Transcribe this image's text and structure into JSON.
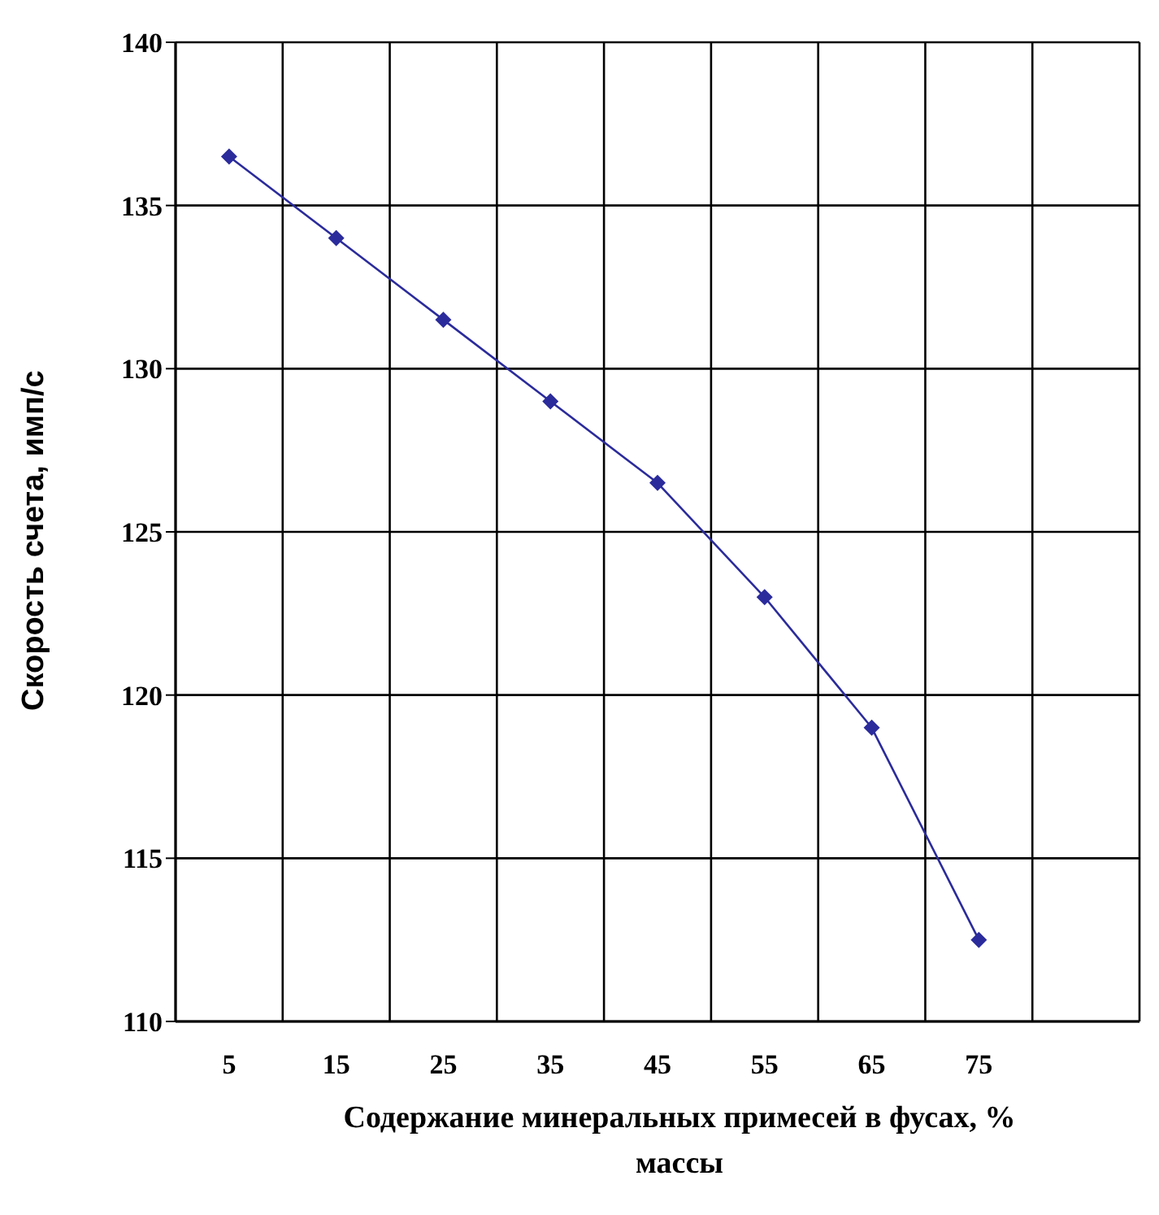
{
  "chart_data": {
    "type": "line",
    "xlabel": "Содержание минеральных примесей в фусах, % массы",
    "ylabel": "Скорость счета, имп/с",
    "categories": [
      "5",
      "15",
      "25",
      "35",
      "45",
      "55",
      "65",
      "75",
      null
    ],
    "series": [
      {
        "color": "#2b2b9c",
        "values": [
          136.5,
          134,
          131.5,
          129,
          126.5,
          123,
          119,
          112.5,
          null
        ]
      }
    ],
    "ylim": [
      110,
      140
    ],
    "yticks": [
      110,
      115,
      120,
      125,
      130,
      135,
      140
    ],
    "grid": true,
    "marker": "diamond",
    "legend": false
  }
}
